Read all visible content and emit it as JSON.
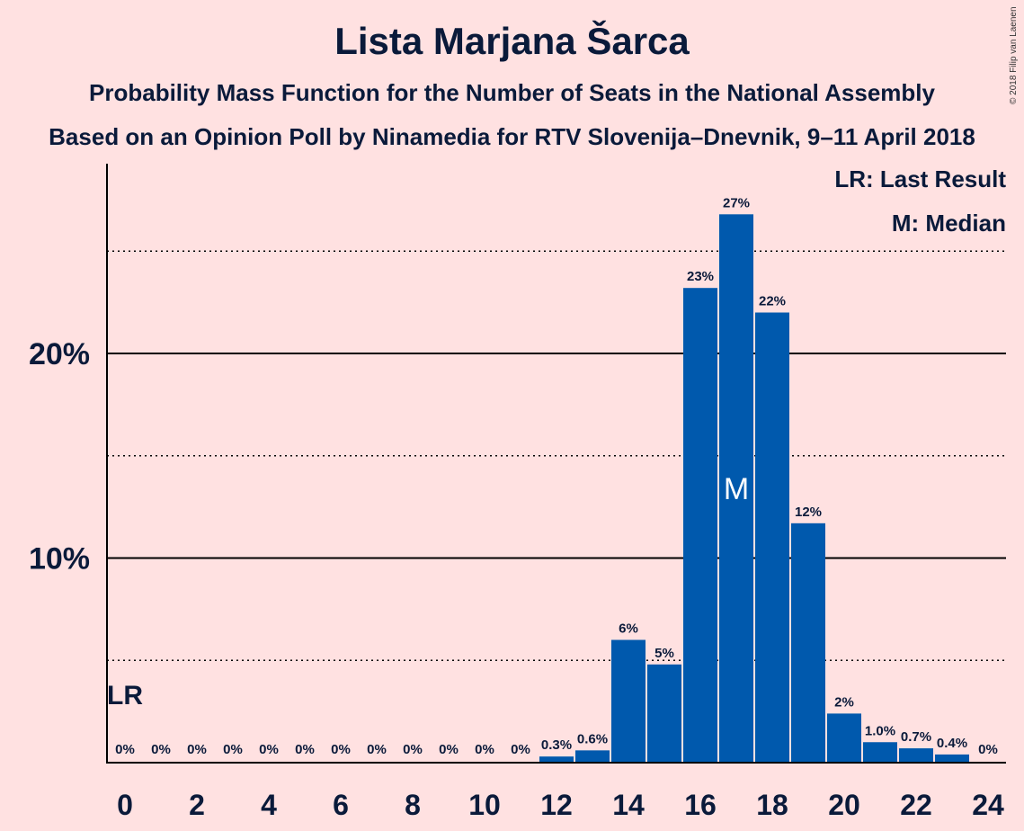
{
  "chart_data": {
    "type": "bar",
    "title": "Lista Marjana Šarca",
    "subtitle": "Probability Mass Function for the Number of Seats in the National Assembly",
    "subtitle2": "Based on an Opinion Poll by Ninamedia for RTV Slovenija–Dnevnik, 9–11 April 2018",
    "x": [
      0,
      1,
      2,
      3,
      4,
      5,
      6,
      7,
      8,
      9,
      10,
      11,
      12,
      13,
      14,
      15,
      16,
      17,
      18,
      19,
      20,
      21,
      22,
      23,
      24
    ],
    "values": [
      0,
      0,
      0,
      0,
      0,
      0,
      0,
      0,
      0,
      0,
      0,
      0,
      0.3,
      0.6,
      6,
      4.8,
      23.2,
      26.8,
      22,
      11.7,
      2.4,
      1.0,
      0.7,
      0.4,
      0
    ],
    "value_labels": [
      "0%",
      "0%",
      "0%",
      "0%",
      "0%",
      "0%",
      "0%",
      "0%",
      "0%",
      "0%",
      "0%",
      "0%",
      "0.3%",
      "0.6%",
      "6%",
      "5%",
      "23%",
      "27%",
      "22%",
      "12%",
      "2%",
      "1.0%",
      "0.7%",
      "0.4%",
      "0%"
    ],
    "x_tick_labels": [
      "0",
      "2",
      "4",
      "6",
      "8",
      "10",
      "12",
      "14",
      "16",
      "18",
      "20",
      "22",
      "24"
    ],
    "x_tick_values": [
      0,
      2,
      4,
      6,
      8,
      10,
      12,
      14,
      16,
      18,
      20,
      22,
      24
    ],
    "y_tick_labels": [
      "10%",
      "20%"
    ],
    "y_tick_values": [
      10,
      20
    ],
    "ylim": [
      0,
      29.2
    ],
    "grid_solid": [
      10,
      20
    ],
    "grid_dotted": [
      5,
      15,
      25
    ],
    "last_result": 0,
    "last_result_label": "LR",
    "median": 17,
    "median_label": "M",
    "legend": [
      "LR: Last Result",
      "M: Median"
    ],
    "legend_placement": "top-right",
    "bar_color": "#0059ad",
    "copyright": "© 2018 Filip van Laenen"
  }
}
